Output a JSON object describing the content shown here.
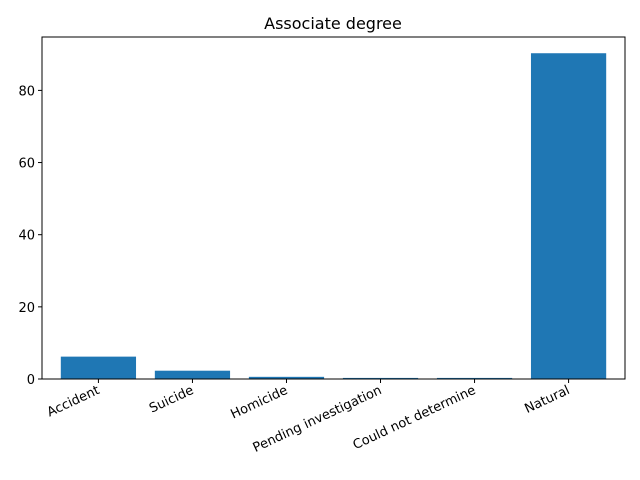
{
  "chart_data": {
    "type": "bar",
    "title": "Associate degree",
    "xlabel": "",
    "ylabel": "",
    "categories": [
      "Accident",
      "Suicide",
      "Homicide",
      "Pending investigation",
      "Could not determine",
      "Natural"
    ],
    "values": [
      6.2,
      2.3,
      0.6,
      0.3,
      0.3,
      90.3
    ],
    "ylim": [
      0,
      94.8
    ],
    "yticks": [
      0,
      20,
      40,
      60,
      80
    ],
    "grid": false,
    "bar_color": "#1f77b4"
  }
}
